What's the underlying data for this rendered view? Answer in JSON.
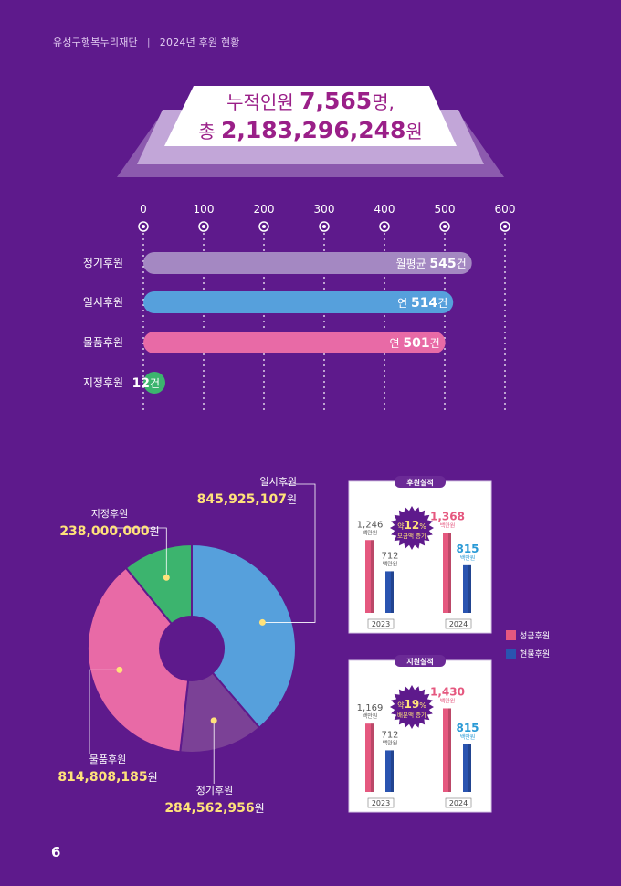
{
  "header": {
    "org": "유성구행복누리재단",
    "separator": "|",
    "title": "2024년 후원 현황"
  },
  "banner": {
    "line1_prefix": "누적인원 ",
    "line1_value": "7,565",
    "line1_suffix": "명,",
    "line2_prefix": "총 ",
    "line2_value": "2,183,296,248",
    "line2_suffix": "원"
  },
  "colors": {
    "background": "#5e1a8c",
    "regular": "#a488c2",
    "one_time": "#56a0dc",
    "goods": "#e86aa6",
    "designated": "#3cb46e",
    "cash": "#e5587f",
    "material": "#2a54b0",
    "highlight": "#ffe27a",
    "banner_text": "#9a1f88"
  },
  "chart_data": [
    {
      "type": "bar",
      "orientation": "horizontal",
      "ticks": [
        0,
        100,
        200,
        300,
        400,
        500,
        600
      ],
      "xlim": [
        0,
        600
      ],
      "grid": true,
      "categories": [
        "정기후원",
        "일시후원",
        "물품후원",
        "지정후원"
      ],
      "values": [
        545,
        514,
        501,
        12
      ],
      "labels": [
        {
          "prefix": "월평균 ",
          "value": "545",
          "suffix": "건"
        },
        {
          "prefix": "연 ",
          "value": "514",
          "suffix": "건"
        },
        {
          "prefix": "연 ",
          "value": "501",
          "suffix": "건"
        },
        {
          "prefix": "",
          "value": "12",
          "suffix": "건"
        }
      ]
    },
    {
      "type": "pie",
      "donut": true,
      "slices": [
        {
          "label": "일시후원",
          "value": 845925107,
          "display": "845,925,107",
          "unit": "원"
        },
        {
          "label": "정기후원",
          "value": 284562956,
          "display": "284,562,956",
          "unit": "원"
        },
        {
          "label": "물품후원",
          "value": 814808185,
          "display": "814,808,185",
          "unit": "원"
        },
        {
          "label": "지정후원",
          "value": 238000000,
          "display": "238,000,000",
          "unit": "원"
        }
      ]
    },
    {
      "type": "bar",
      "title": "후원실적",
      "categories": [
        "2023",
        "2024"
      ],
      "series": [
        {
          "name": "성금후원",
          "values": [
            1246,
            1368
          ],
          "labels": [
            "1,246",
            "1,368"
          ]
        },
        {
          "name": "현물후원",
          "values": [
            712,
            815
          ],
          "labels": [
            "712",
            "815"
          ]
        }
      ],
      "unit": "백만원",
      "badge": {
        "line1": "약",
        "pct": "12",
        "pct_unit": "%",
        "line2": "모금액 증가"
      }
    },
    {
      "type": "bar",
      "title": "지원실적",
      "categories": [
        "2023",
        "2024"
      ],
      "series": [
        {
          "name": "성금후원",
          "values": [
            1169,
            1430
          ],
          "labels": [
            "1,169",
            "1,430"
          ]
        },
        {
          "name": "현물후원",
          "values": [
            712,
            815
          ],
          "labels": [
            "712",
            "815"
          ]
        }
      ],
      "unit": "백만원",
      "badge": {
        "line1": "약",
        "pct": "19",
        "pct_unit": "%",
        "line2": "배분액 증가"
      }
    }
  ],
  "legend": [
    {
      "label": "성금후원"
    },
    {
      "label": "현물후원"
    }
  ],
  "page_number": "6"
}
